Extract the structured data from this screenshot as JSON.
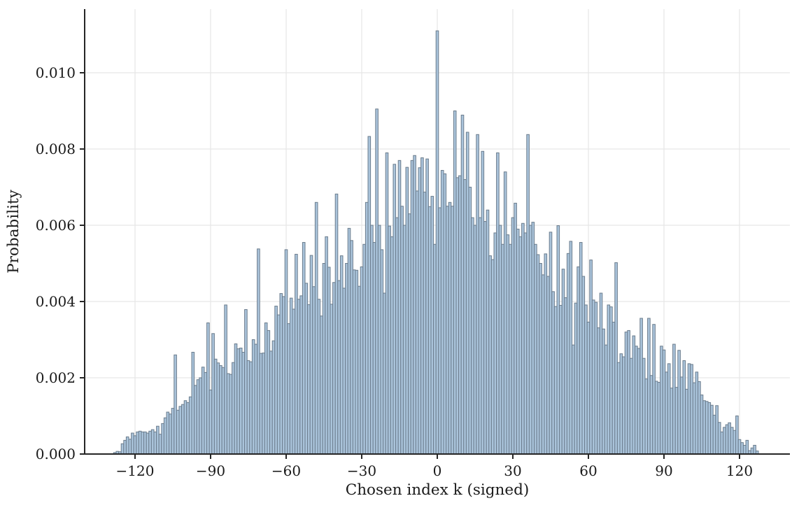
{
  "figure": {
    "title": "",
    "xlabel": "Chosen index k (signed)",
    "ylabel": "Probability"
  },
  "chart_data": {
    "type": "bar",
    "subtype": "histogram",
    "title": "",
    "xlabel": "Chosen index k (signed)",
    "ylabel": "Probability",
    "bin_width": 1,
    "k_start": -128,
    "xlim": [
      -140,
      140
    ],
    "ylim": [
      0,
      0.01167
    ],
    "xticks": [
      -120,
      -90,
      -60,
      -30,
      0,
      30,
      60,
      90,
      120
    ],
    "yticks": [
      0.0,
      0.002,
      0.004,
      0.006,
      0.008,
      0.01
    ],
    "grid": true,
    "legend": null,
    "colors": {
      "background": "#ffffff",
      "bar_fill": "#aac4db",
      "bar_edge": "#6b7c8c",
      "grid": "#e7e7e7",
      "spine": "#262626",
      "text": "#1a1a1a"
    },
    "values": [
      4e-05,
      7e-05,
      6e-05,
      0.00027,
      0.00036,
      0.00045,
      0.00039,
      0.00055,
      0.00048,
      0.00058,
      0.0006,
      0.00058,
      0.00058,
      0.00055,
      0.0006,
      0.00064,
      0.00058,
      0.00073,
      0.00052,
      0.0008,
      0.00095,
      0.0011,
      0.00105,
      0.0012,
      0.0026,
      0.00115,
      0.00125,
      0.0013,
      0.0014,
      0.00135,
      0.0015,
      0.00267,
      0.0018,
      0.00195,
      0.002,
      0.00228,
      0.00214,
      0.00344,
      0.00168,
      0.00316,
      0.00249,
      0.00239,
      0.00232,
      0.00227,
      0.00391,
      0.00211,
      0.00209,
      0.0024,
      0.00289,
      0.00276,
      0.00278,
      0.00267,
      0.00379,
      0.00245,
      0.00242,
      0.003,
      0.00288,
      0.00538,
      0.00264,
      0.00265,
      0.00344,
      0.00324,
      0.0027,
      0.00297,
      0.00388,
      0.00365,
      0.00421,
      0.00413,
      0.00536,
      0.00342,
      0.00409,
      0.0038,
      0.00524,
      0.00406,
      0.00415,
      0.00555,
      0.00448,
      0.00392,
      0.00521,
      0.00439,
      0.0066,
      0.00406,
      0.00362,
      0.005,
      0.0057,
      0.0049,
      0.00393,
      0.0045,
      0.00682,
      0.00455,
      0.0052,
      0.00435,
      0.005,
      0.00592,
      0.0056,
      0.00483,
      0.00482,
      0.0044,
      0.00491,
      0.0055,
      0.0066,
      0.00833,
      0.006,
      0.00555,
      0.00905,
      0.006,
      0.00536,
      0.00422,
      0.0079,
      0.00598,
      0.0057,
      0.0076,
      0.0062,
      0.0077,
      0.0065,
      0.006,
      0.00752,
      0.0063,
      0.0077,
      0.00783,
      0.0069,
      0.00751,
      0.00777,
      0.00687,
      0.00774,
      0.00649,
      0.00676,
      0.0055,
      0.0111,
      0.00646,
      0.00744,
      0.00735,
      0.0065,
      0.0066,
      0.0065,
      0.009,
      0.00725,
      0.0073,
      0.00889,
      0.0072,
      0.00844,
      0.007,
      0.0062,
      0.006,
      0.00838,
      0.0062,
      0.00794,
      0.0061,
      0.0064,
      0.0052,
      0.0051,
      0.0058,
      0.0079,
      0.006,
      0.0055,
      0.0074,
      0.00575,
      0.0055,
      0.0062,
      0.00658,
      0.0059,
      0.0057,
      0.00605,
      0.0058,
      0.00838,
      0.006,
      0.00608,
      0.0055,
      0.00523,
      0.005,
      0.0047,
      0.00525,
      0.00466,
      0.00582,
      0.00426,
      0.00387,
      0.00599,
      0.0039,
      0.00485,
      0.0041,
      0.00526,
      0.00558,
      0.00286,
      0.00396,
      0.00491,
      0.00555,
      0.00466,
      0.00391,
      0.00346,
      0.00509,
      0.00404,
      0.00398,
      0.00331,
      0.00422,
      0.00328,
      0.00286,
      0.00391,
      0.00386,
      0.00346,
      0.00502,
      0.0024,
      0.00263,
      0.00255,
      0.0032,
      0.00324,
      0.00251,
      0.0031,
      0.00283,
      0.00277,
      0.00356,
      0.00251,
      0.00197,
      0.00356,
      0.00206,
      0.0034,
      0.00191,
      0.00188,
      0.00283,
      0.00273,
      0.00215,
      0.00237,
      0.00173,
      0.00288,
      0.00175,
      0.00272,
      0.00202,
      0.00245,
      0.0017,
      0.00237,
      0.00235,
      0.00187,
      0.00215,
      0.0019,
      0.00155,
      0.0014,
      0.00138,
      0.00135,
      0.00128,
      0.00102,
      0.00127,
      0.00083,
      0.00058,
      0.0007,
      0.00077,
      0.00082,
      0.0007,
      0.00062,
      0.001,
      0.00038,
      0.0003,
      0.00023,
      0.00036,
      9e-05,
      0.00016,
      0.00023,
      8e-05
    ]
  }
}
